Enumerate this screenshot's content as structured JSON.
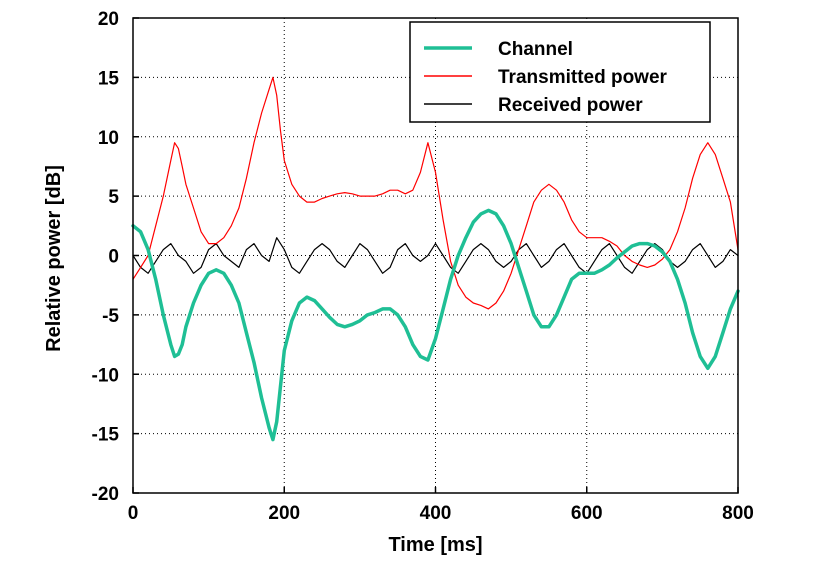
{
  "chart_data": {
    "type": "line",
    "title": "",
    "xlabel": "Time [ms]",
    "ylabel": "Relative power [dB]",
    "xlim": [
      0,
      800
    ],
    "ylim": [
      -20,
      20
    ],
    "xticks": [
      0,
      200,
      400,
      600,
      800
    ],
    "yticks": [
      -20,
      -15,
      -10,
      -5,
      0,
      5,
      10,
      15,
      20
    ],
    "grid": true,
    "legend_position": "top-right",
    "series": [
      {
        "name": "Channel",
        "color": "#1fbf95",
        "x": [
          0,
          10,
          20,
          30,
          40,
          50,
          55,
          60,
          65,
          70,
          80,
          90,
          100,
          110,
          120,
          130,
          140,
          150,
          160,
          170,
          180,
          185,
          190,
          195,
          200,
          210,
          220,
          230,
          240,
          250,
          260,
          270,
          280,
          290,
          300,
          310,
          320,
          330,
          340,
          350,
          360,
          370,
          380,
          390,
          400,
          410,
          420,
          430,
          440,
          450,
          460,
          470,
          480,
          490,
          500,
          510,
          520,
          530,
          540,
          550,
          560,
          570,
          580,
          590,
          600,
          610,
          620,
          630,
          640,
          650,
          660,
          670,
          680,
          690,
          700,
          710,
          720,
          730,
          740,
          750,
          760,
          770,
          780,
          790,
          800
        ],
        "values": [
          2.5,
          2.0,
          0.5,
          -2.0,
          -5.0,
          -7.5,
          -8.5,
          -8.3,
          -7.5,
          -6.0,
          -4.0,
          -2.5,
          -1.5,
          -1.2,
          -1.5,
          -2.5,
          -4.0,
          -6.5,
          -9.0,
          -12.0,
          -14.5,
          -15.5,
          -14.0,
          -11.0,
          -8.0,
          -5.5,
          -4.0,
          -3.5,
          -3.8,
          -4.5,
          -5.2,
          -5.8,
          -6.0,
          -5.8,
          -5.5,
          -5.0,
          -4.8,
          -4.5,
          -4.5,
          -5.0,
          -6.0,
          -7.5,
          -8.5,
          -8.8,
          -7.0,
          -4.5,
          -2.0,
          0.0,
          1.5,
          2.8,
          3.5,
          3.8,
          3.5,
          2.5,
          1.0,
          -1.0,
          -3.0,
          -5.0,
          -6.0,
          -6.0,
          -5.0,
          -3.5,
          -2.0,
          -1.5,
          -1.5,
          -1.5,
          -1.2,
          -0.8,
          -0.2,
          0.3,
          0.8,
          1.0,
          1.0,
          0.8,
          0.3,
          -0.5,
          -2.0,
          -4.0,
          -6.5,
          -8.5,
          -9.5,
          -8.5,
          -6.5,
          -4.5,
          -3.0
        ]
      },
      {
        "name": "Transmitted power",
        "color": "#ff0000",
        "x": [
          0,
          10,
          20,
          30,
          40,
          50,
          55,
          60,
          65,
          70,
          80,
          90,
          100,
          110,
          120,
          130,
          140,
          150,
          160,
          170,
          180,
          185,
          190,
          195,
          200,
          210,
          220,
          230,
          240,
          250,
          260,
          270,
          280,
          290,
          300,
          310,
          320,
          330,
          340,
          350,
          360,
          370,
          380,
          390,
          400,
          410,
          420,
          430,
          440,
          450,
          460,
          470,
          480,
          490,
          500,
          510,
          520,
          530,
          540,
          550,
          560,
          570,
          580,
          590,
          600,
          610,
          620,
          630,
          640,
          650,
          660,
          670,
          680,
          690,
          700,
          710,
          720,
          730,
          740,
          750,
          760,
          770,
          780,
          790,
          800
        ],
        "values": [
          -2.0,
          -1.0,
          0.0,
          2.5,
          5.0,
          8.0,
          9.5,
          9.0,
          7.5,
          6.0,
          4.0,
          2.0,
          1.0,
          1.0,
          1.5,
          2.5,
          4.0,
          6.5,
          9.5,
          12.0,
          14.0,
          15.0,
          13.5,
          10.5,
          8.0,
          6.0,
          5.0,
          4.5,
          4.5,
          4.8,
          5.0,
          5.2,
          5.3,
          5.2,
          5.0,
          5.0,
          5.0,
          5.2,
          5.5,
          5.5,
          5.2,
          5.5,
          7.0,
          9.5,
          7.0,
          3.0,
          -0.5,
          -2.5,
          -3.5,
          -4.0,
          -4.2,
          -4.5,
          -4.0,
          -3.0,
          -1.5,
          0.5,
          2.5,
          4.5,
          5.5,
          6.0,
          5.5,
          4.5,
          3.0,
          2.0,
          1.5,
          1.5,
          1.5,
          1.2,
          0.8,
          0.0,
          -0.5,
          -0.8,
          -1.0,
          -0.8,
          -0.3,
          0.5,
          2.0,
          4.0,
          6.5,
          8.5,
          9.5,
          8.5,
          6.5,
          4.5,
          0.5
        ]
      },
      {
        "name": "Received power",
        "color": "#000000",
        "x": [
          0,
          10,
          20,
          30,
          40,
          50,
          60,
          70,
          80,
          90,
          100,
          110,
          120,
          130,
          140,
          150,
          160,
          170,
          180,
          190,
          200,
          210,
          220,
          230,
          240,
          250,
          260,
          270,
          280,
          290,
          300,
          310,
          320,
          330,
          340,
          350,
          360,
          370,
          380,
          390,
          400,
          410,
          420,
          430,
          440,
          450,
          460,
          470,
          480,
          490,
          500,
          510,
          520,
          530,
          540,
          550,
          560,
          570,
          580,
          590,
          600,
          610,
          620,
          630,
          640,
          650,
          660,
          670,
          680,
          690,
          700,
          710,
          720,
          730,
          740,
          750,
          760,
          770,
          780,
          790,
          800
        ],
        "values": [
          0.0,
          -1.0,
          -1.5,
          -0.5,
          0.5,
          1.0,
          0.0,
          -0.5,
          -1.5,
          -1.0,
          0.5,
          1.0,
          0.0,
          -0.5,
          -1.0,
          0.5,
          1.0,
          0.0,
          -0.5,
          1.5,
          0.5,
          -1.0,
          -1.5,
          -0.5,
          0.5,
          1.0,
          0.5,
          -0.5,
          -1.0,
          0.0,
          1.0,
          0.5,
          -0.5,
          -1.5,
          -1.0,
          0.5,
          1.0,
          0.0,
          -0.5,
          0.0,
          1.0,
          0.0,
          -1.0,
          -1.5,
          -0.5,
          0.5,
          1.0,
          0.5,
          -0.5,
          -1.0,
          -0.5,
          0.5,
          1.0,
          0.0,
          -1.0,
          -0.5,
          0.5,
          1.0,
          0.0,
          -1.0,
          -1.5,
          -0.5,
          0.5,
          1.0,
          0.0,
          -1.0,
          -1.5,
          -0.5,
          0.5,
          1.0,
          0.5,
          -0.5,
          -1.0,
          -0.5,
          0.5,
          1.0,
          0.0,
          -1.0,
          -0.5,
          0.5,
          0.0
        ]
      }
    ]
  }
}
